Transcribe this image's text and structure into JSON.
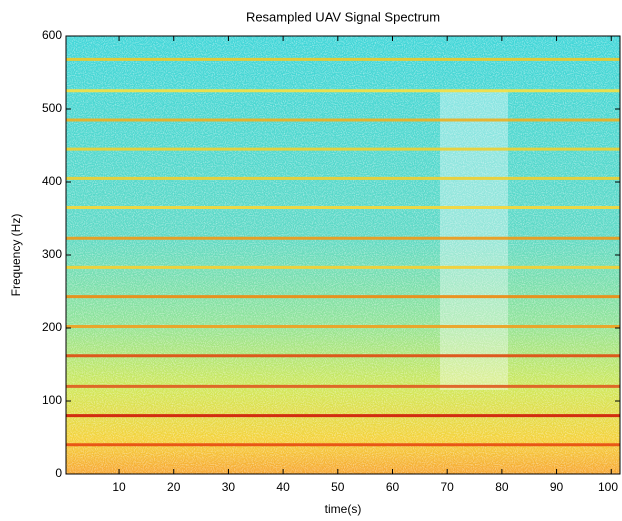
{
  "chart_data": {
    "type": "spectrogram",
    "title": "Resampled UAV Signal Spectrum",
    "xlabel": "time(s)",
    "ylabel": "Frequency (Hz)",
    "xlim": [
      0.3,
      101.6
    ],
    "ylim": [
      0,
      600
    ],
    "xticks": [
      10,
      20,
      30,
      40,
      50,
      60,
      70,
      80,
      90,
      100
    ],
    "yticks": [
      0,
      100,
      200,
      300,
      400,
      500,
      600
    ],
    "colormap": "jet",
    "harmonics": {
      "frequencies": [
        40,
        80,
        120,
        162,
        202,
        243,
        283,
        323,
        365,
        405,
        445,
        485,
        525,
        568
      ],
      "colors": [
        "#e84a10",
        "#d01a08",
        "#e05a20",
        "#e04a10",
        "#f0a020",
        "#f08a10",
        "#f8d030",
        "#f09a18",
        "#f8d838",
        "#f0d030",
        "#f0d030",
        "#f0b020",
        "#f8e040",
        "#f0c828"
      ]
    }
  }
}
